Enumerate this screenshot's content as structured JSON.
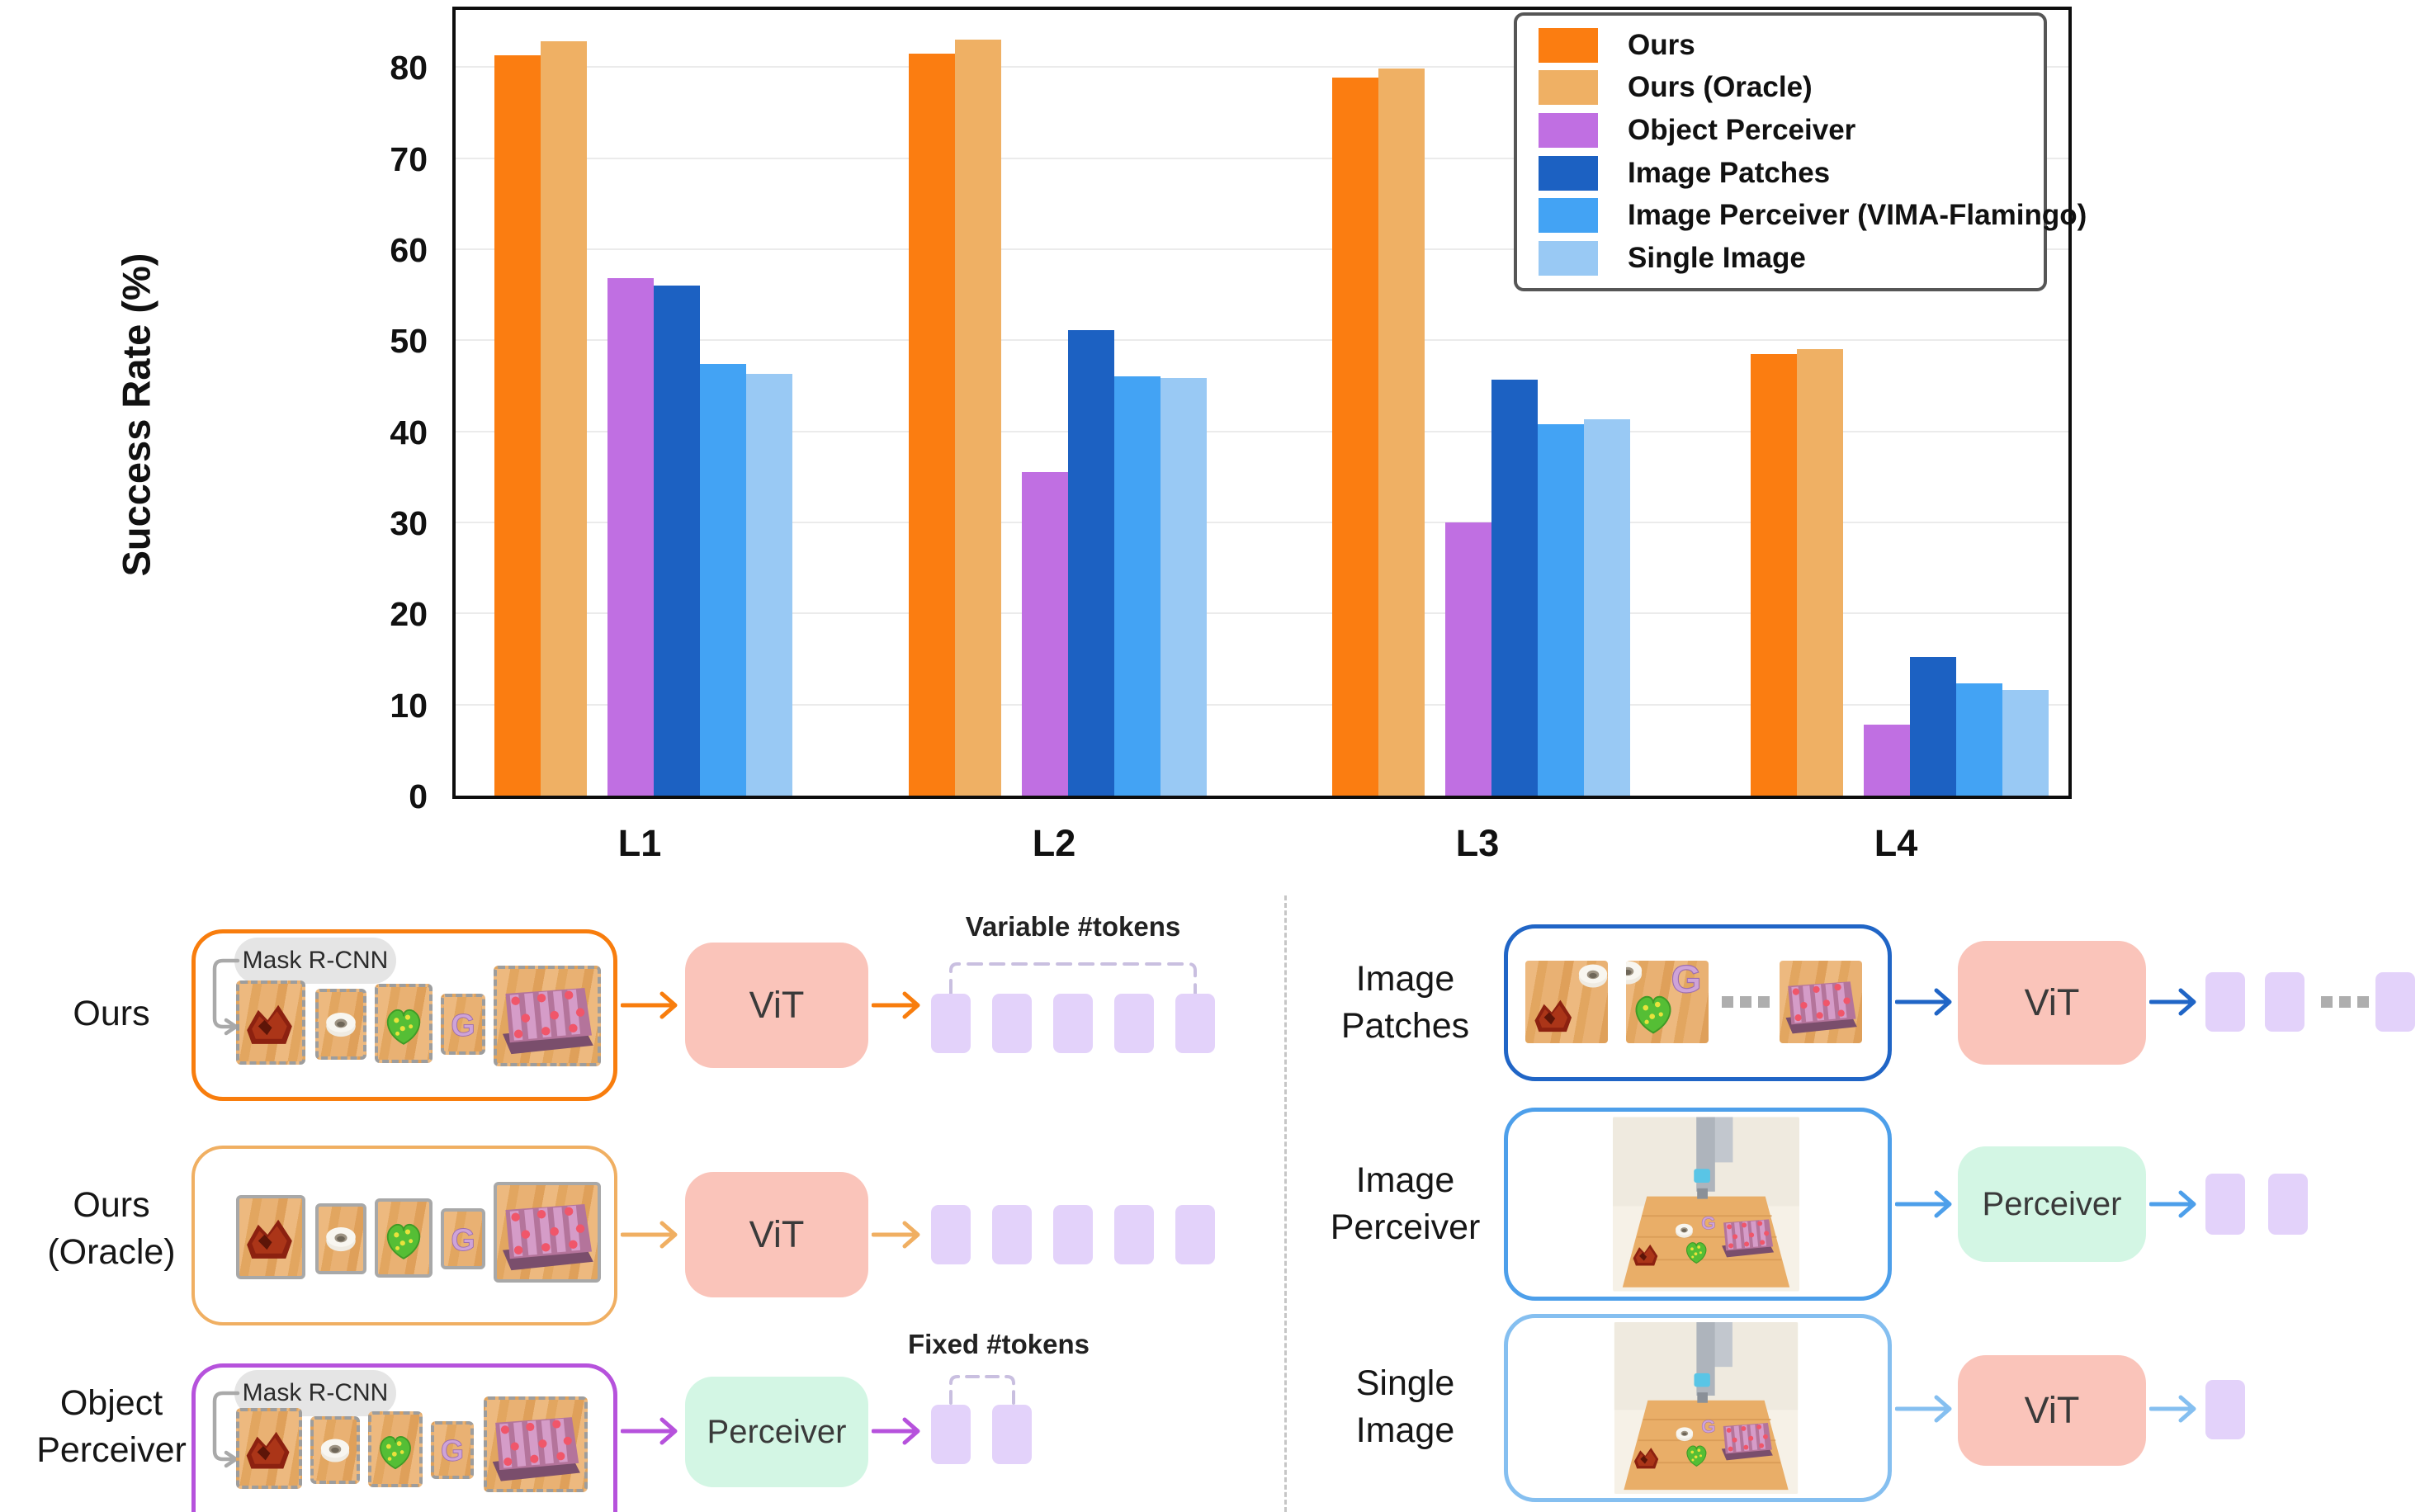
{
  "chart_data": {
    "type": "bar",
    "title": "",
    "xlabel": "",
    "ylabel": "Success Rate (%)",
    "categories": [
      "L1",
      "L2",
      "L3",
      "L4"
    ],
    "series": [
      {
        "name": "Ours",
        "color": "#fb7d11",
        "values": [
          81.3,
          81.5,
          78.8,
          48.5
        ]
      },
      {
        "name": "Ours (Oracle)",
        "color": "#efb064",
        "values": [
          82.8,
          83.0,
          79.8,
          49.0
        ]
      },
      {
        "name": "Object Perceiver",
        "color": "#c06fe2",
        "values": [
          56.8,
          35.5,
          30.0,
          7.8
        ]
      },
      {
        "name": "Image Patches",
        "color": "#1c61c2",
        "values": [
          56.0,
          51.1,
          45.7,
          15.2
        ]
      },
      {
        "name": "Image Perceiver (VIMA-Flamingo)",
        "color": "#43a3f4",
        "values": [
          47.4,
          46.0,
          40.8,
          12.3
        ]
      },
      {
        "name": "Single Image",
        "color": "#99c9f4",
        "values": [
          46.3,
          45.9,
          41.3,
          11.6
        ]
      }
    ],
    "ylim": [
      0,
      87
    ],
    "yticks": [
      0,
      10,
      20,
      30,
      40,
      50,
      60,
      70,
      80
    ],
    "grid": true,
    "legend_position": "upper right"
  },
  "diagram": {
    "left": [
      {
        "label_line1": "Ours",
        "label_line2": "",
        "detector": "Mask R-CNN",
        "processor": "ViT",
        "token_note": "Variable #tokens",
        "tokens": 5,
        "objects": [
          "red-block",
          "white-donut",
          "green-dice",
          "letter-g",
          "pink-pallet"
        ],
        "accent": "#f87d0d"
      },
      {
        "label_line1": "Ours",
        "label_line2": "(Oracle)",
        "processor": "ViT",
        "tokens": 5,
        "objects": [
          "red-block",
          "white-donut",
          "green-dice",
          "letter-g",
          "pink-pallet"
        ],
        "accent": "#f0af62"
      },
      {
        "label_line1": "Object",
        "label_line2": "Perceiver",
        "detector": "Mask R-CNN",
        "processor": "Perceiver",
        "token_note": "Fixed #tokens",
        "tokens": 2,
        "objects": [
          "red-block",
          "white-donut",
          "green-dice",
          "letter-g",
          "pink-pallet"
        ],
        "accent": "#b652dc"
      }
    ],
    "right": [
      {
        "label_line1": "Image",
        "label_line2": "Patches",
        "processor": "ViT",
        "tokens": 3,
        "content": "image-patches",
        "ellipsis": "...",
        "accent": "#2065c6"
      },
      {
        "label_line1": "Image",
        "label_line2": "Perceiver",
        "processor": "Perceiver",
        "tokens": 2,
        "content": "scene-image",
        "accent": "#4d9fea"
      },
      {
        "label_line1": "Single",
        "label_line2": "Image",
        "processor": "ViT",
        "tokens": 1,
        "content": "scene-image",
        "accent": "#85bff0"
      }
    ]
  }
}
